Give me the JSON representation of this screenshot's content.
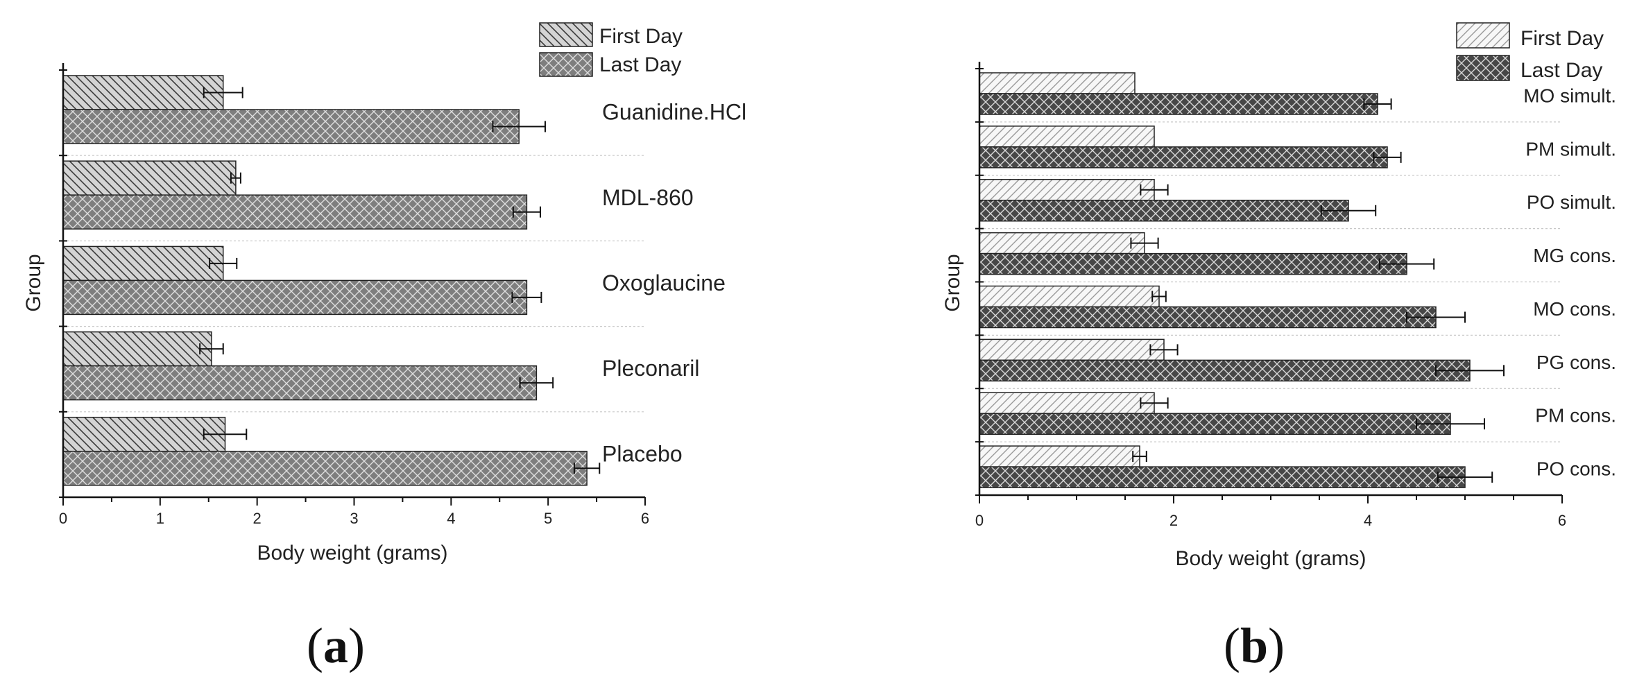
{
  "chart_data": [
    {
      "panel": "a",
      "type": "bar",
      "orientation": "horizontal",
      "xlabel": "Body weight (grams)",
      "ylabel": "Group",
      "xlim": [
        0,
        6
      ],
      "xticks": [
        "0",
        "1",
        "2",
        "3",
        "4",
        "5",
        "6"
      ],
      "grid": "dotted separators between groups",
      "legend_position": "top-right",
      "categories": [
        "Guanidine.HCl",
        "MDL-860",
        "Oxoglaucine",
        "Pleconaril",
        "Placebo"
      ],
      "series": [
        {
          "name": "First Day",
          "values": [
            1.65,
            1.78,
            1.65,
            1.53,
            1.67
          ],
          "errors": [
            0.2,
            0.05,
            0.14,
            0.12,
            0.22
          ]
        },
        {
          "name": "Last Day",
          "values": [
            4.7,
            4.78,
            4.78,
            4.88,
            5.4
          ],
          "errors": [
            0.27,
            0.14,
            0.15,
            0.17,
            0.13
          ]
        }
      ],
      "colors": {
        "First Day": "#d2d2d2",
        "Last Day": "#7d7d7d"
      }
    },
    {
      "panel": "b",
      "type": "bar",
      "orientation": "horizontal",
      "xlabel": "Body weight (grams)",
      "ylabel": "Group",
      "xlim": [
        0,
        6
      ],
      "xticks": [
        "0",
        "2",
        "4",
        "6"
      ],
      "grid": "dotted separators between groups",
      "legend_position": "top-right",
      "categories": [
        "MO simult.",
        "PM simult.",
        "PO simult.",
        "MG cons.",
        "MO cons.",
        "PG cons.",
        "PM cons.",
        "PO cons."
      ],
      "series": [
        {
          "name": "First Day",
          "values": [
            1.6,
            1.8,
            1.8,
            1.7,
            1.85,
            1.9,
            1.8,
            1.65
          ],
          "errors": [
            0,
            0,
            0.14,
            0.14,
            0.07,
            0.14,
            0.14,
            0.07
          ]
        },
        {
          "name": "Last Day",
          "values": [
            4.1,
            4.2,
            3.8,
            4.4,
            4.7,
            5.05,
            4.85,
            5.0
          ],
          "errors": [
            0.14,
            0.14,
            0.28,
            0.28,
            0.3,
            0.35,
            0.35,
            0.28
          ]
        }
      ],
      "colors": {
        "First Day": "#f2f2f2",
        "Last Day": "#4a4a4a"
      }
    }
  ],
  "panel_labels": {
    "a": "a",
    "b": "b"
  }
}
